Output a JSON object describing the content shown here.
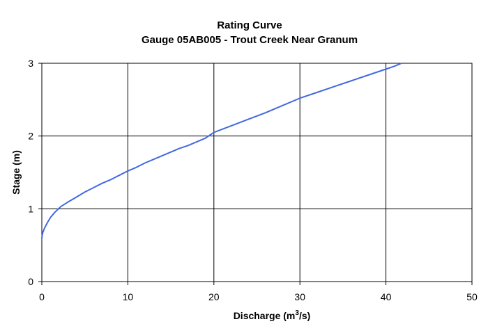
{
  "chart_data": {
    "type": "line",
    "title": "Rating Curve",
    "subtitle": "Gauge 05AB005 - Trout Creek Near Granum",
    "xlabel_prefix": "Discharge (m",
    "xlabel_sup": "3",
    "xlabel_suffix": "/s)",
    "ylabel": "Stage (m)",
    "xlim": [
      0,
      50
    ],
    "ylim": [
      0,
      3
    ],
    "x_ticks": [
      0,
      10,
      20,
      30,
      40,
      50
    ],
    "y_ticks": [
      0,
      1,
      2,
      3
    ],
    "x_tick_labels": [
      "0",
      "10",
      "20",
      "30",
      "40",
      "50"
    ],
    "y_tick_labels": [
      "0",
      "1",
      "2",
      "3"
    ],
    "grid": true,
    "line_color": "#4169e1",
    "series": [
      {
        "x": [
          0,
          0.1,
          0.3,
          0.6,
          1,
          1.5,
          2.2,
          3,
          4,
          5,
          6,
          7,
          8,
          9,
          10,
          11,
          12,
          13,
          14,
          15,
          16,
          17,
          18,
          19,
          20,
          22,
          24,
          26,
          28,
          30,
          32,
          34,
          36,
          38,
          40,
          41,
          41.8
        ],
        "y": [
          0.6,
          0.67,
          0.73,
          0.8,
          0.88,
          0.95,
          1.03,
          1.09,
          1.16,
          1.23,
          1.29,
          1.35,
          1.4,
          1.46,
          1.52,
          1.57,
          1.63,
          1.68,
          1.73,
          1.78,
          1.83,
          1.87,
          1.92,
          1.97,
          2.05,
          2.14,
          2.23,
          2.32,
          2.42,
          2.52,
          2.6,
          2.68,
          2.76,
          2.84,
          2.92,
          2.96,
          3.0
        ]
      }
    ]
  }
}
